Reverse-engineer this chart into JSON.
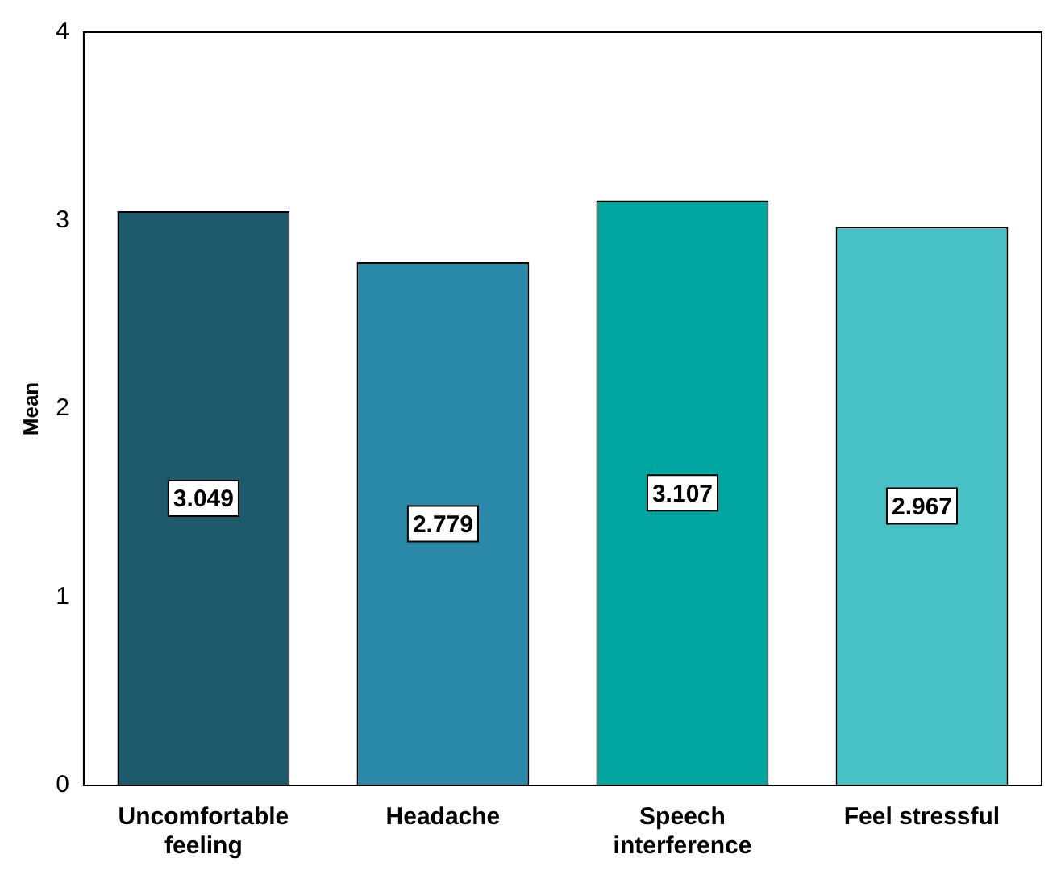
{
  "chart_data": {
    "type": "bar",
    "ylabel": "Mean",
    "categories": [
      "Uncomfortable feeling",
      "Headache",
      "Speech interference",
      "Feel stressful"
    ],
    "values": [
      3.049,
      2.779,
      3.107,
      2.967
    ],
    "colors": [
      "#1d5a6c",
      "#2a89a8",
      "#00a69f",
      "#48c2c6"
    ],
    "ylim": [
      0,
      4
    ],
    "yticks": [
      0,
      1,
      2,
      3,
      4
    ],
    "grid": false,
    "legend": false,
    "data_labels": true
  }
}
